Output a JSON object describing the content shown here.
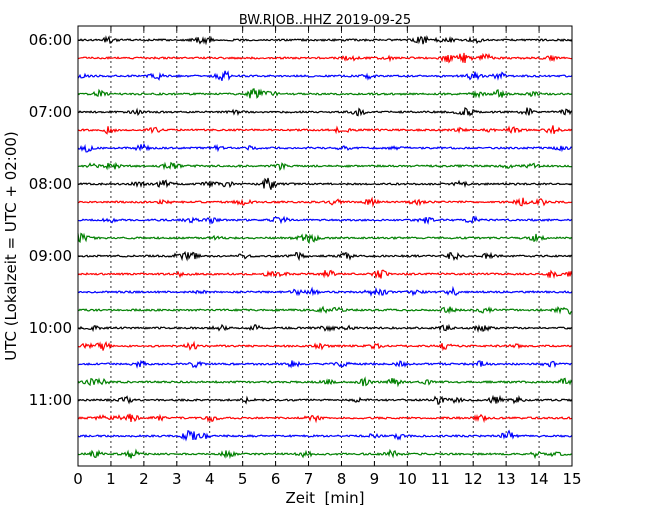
{
  "chart_data": {
    "type": "line",
    "title": "BW.RJOB..HHZ 2019-09-25",
    "xlabel": "Zeit  [min]",
    "ylabel": "UTC (Lokalzeit = UTC + 02:00)",
    "xlim": [
      0,
      15
    ],
    "x_ticks": [
      "0",
      "1",
      "2",
      "3",
      "4",
      "5",
      "6",
      "7",
      "8",
      "9",
      "10",
      "11",
      "12",
      "13",
      "14",
      "15"
    ],
    "y_tick_labels": [
      "06:00",
      "07:00",
      "08:00",
      "09:00",
      "10:00",
      "11:00"
    ],
    "grid": "vertical dotted",
    "trace_colors": [
      "#000000",
      "#ff0000",
      "#0000ff",
      "#008000"
    ],
    "series_start_times": [
      "06:00",
      "06:15",
      "06:30",
      "06:45",
      "07:00",
      "07:15",
      "07:30",
      "07:45",
      "08:00",
      "08:15",
      "08:30",
      "08:45",
      "09:00",
      "09:15",
      "09:30",
      "09:45",
      "10:00",
      "10:15",
      "10:30",
      "10:45",
      "11:00",
      "11:15",
      "11:30",
      "11:45"
    ]
  }
}
